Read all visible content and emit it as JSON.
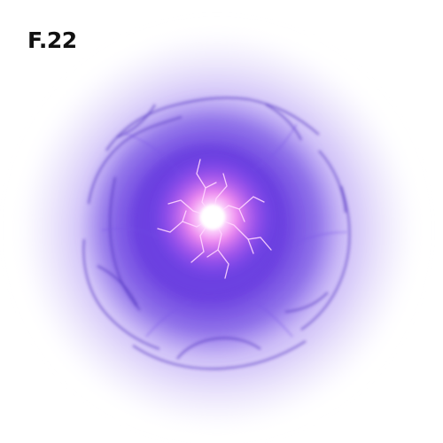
{
  "frame": {
    "label": "F.22"
  },
  "effect": {
    "icon": "energy-orb-icon",
    "colors": {
      "outer_glow": "#e9e2fb",
      "mid_glow": "#a888f0",
      "body": "#6a3fe0",
      "core_ring": "#8a4cf2",
      "core": "#ffffff",
      "core_hot": "#ff9cf2",
      "tendrils": "#5a35c8",
      "lightning": "#ffd6ff"
    }
  }
}
